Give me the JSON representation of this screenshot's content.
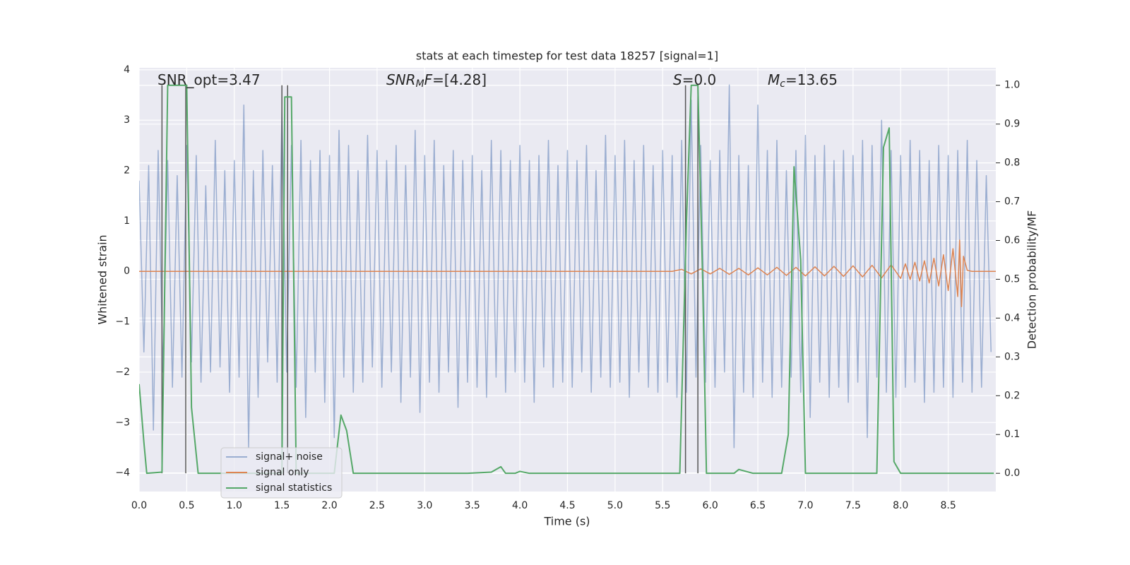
{
  "chart_data": {
    "type": "line",
    "title": "stats at each timestep for test data 18257 [signal=1]",
    "xlabel": "Time (s)",
    "ylabel": "Whitened strain",
    "y2label": "Detection probability/MF",
    "xlim": [
      0,
      9.0
    ],
    "ylim": [
      -4.37,
      4.04
    ],
    "y2lim": [
      -0.047,
      1.045
    ],
    "grid": true,
    "legend": "lower left",
    "xticks": [
      {
        "value": 0,
        "label": "0.0"
      },
      0.5,
      {
        "value": 1,
        "label": "1.0"
      },
      1.5,
      {
        "value": 2,
        "label": "2.0"
      },
      2.5,
      {
        "value": 3,
        "label": "3.0"
      },
      3.5,
      {
        "value": 4,
        "label": "4.0"
      },
      4.5,
      {
        "value": 5,
        "label": "5.0"
      },
      5.5,
      {
        "value": 6,
        "label": "6.0"
      },
      6.5,
      {
        "value": 7,
        "label": "7.0"
      },
      7.5,
      {
        "value": 8,
        "label": "8.0"
      },
      8.5
    ],
    "yticks": [
      {
        "value": -4,
        "label": "−4"
      },
      {
        "value": -3,
        "label": "−3"
      },
      {
        "value": -2,
        "label": "−2"
      },
      {
        "value": -1,
        "label": "−1"
      },
      0,
      1,
      2,
      3,
      4
    ],
    "y2ticks": [
      {
        "value": 0,
        "label": "0.0"
      },
      0.1,
      0.2,
      0.3,
      0.4,
      0.5,
      0.6,
      0.7,
      0.8,
      0.9,
      {
        "value": 1,
        "label": "1.0"
      }
    ],
    "annotations": [
      {
        "segments": [
          {
            "text": "SNR_opt=3.47",
            "style": "normal"
          }
        ]
      },
      {
        "segments": [
          {
            "text": "SNR",
            "style": "italic"
          },
          {
            "text": "M",
            "style": "sub"
          },
          {
            "text": "F",
            "style": "italic"
          },
          {
            "text": "=[4.28]",
            "style": "normal"
          }
        ]
      },
      {
        "segments": [
          {
            "text": "S",
            "style": "italic"
          },
          {
            "text": "=0.0",
            "style": "normal"
          }
        ]
      },
      {
        "segments": [
          {
            "text": "M",
            "style": "italic"
          },
          {
            "text": "c",
            "style": "sub"
          },
          {
            "text": "=13.65",
            "style": "normal"
          }
        ]
      }
    ],
    "vlines": {
      "color": "#555555",
      "x": [
        0.24,
        0.49,
        1.5,
        1.56,
        5.74,
        5.87
      ]
    },
    "series": [
      {
        "name": "signal+ noise",
        "color": "#4c72b0",
        "alpha": 0.5,
        "x": [
          0,
          0.05,
          0.1,
          0.15,
          0.2,
          0.25,
          0.3,
          0.35,
          0.4,
          0.45,
          0.5,
          0.55,
          0.6,
          0.65,
          0.7,
          0.75,
          0.8,
          0.85,
          0.9,
          0.95,
          1,
          1.05,
          1.1,
          1.15,
          1.2,
          1.25,
          1.3,
          1.35,
          1.4,
          1.45,
          1.5,
          1.55,
          1.6,
          1.65,
          1.7,
          1.75,
          1.8,
          1.85,
          1.9,
          1.95,
          2,
          2.05,
          2.1,
          2.15,
          2.2,
          2.25,
          2.3,
          2.35,
          2.4,
          2.45,
          2.5,
          2.55,
          2.6,
          2.65,
          2.7,
          2.75,
          2.8,
          2.85,
          2.9,
          2.95,
          3,
          3.05,
          3.1,
          3.15,
          3.2,
          3.25,
          3.3,
          3.35,
          3.4,
          3.45,
          3.5,
          3.55,
          3.6,
          3.65,
          3.7,
          3.75,
          3.8,
          3.85,
          3.9,
          3.95,
          4,
          4.05,
          4.1,
          4.15,
          4.2,
          4.25,
          4.3,
          4.35,
          4.4,
          4.45,
          4.5,
          4.55,
          4.6,
          4.65,
          4.7,
          4.75,
          4.8,
          4.85,
          4.9,
          4.95,
          5,
          5.05,
          5.1,
          5.15,
          5.2,
          5.25,
          5.3,
          5.35,
          5.4,
          5.45,
          5.5,
          5.55,
          5.6,
          5.65,
          5.7,
          5.75,
          5.8,
          5.85,
          5.9,
          5.95,
          6,
          6.05,
          6.1,
          6.15,
          6.2,
          6.25,
          6.3,
          6.35,
          6.4,
          6.45,
          6.5,
          6.55,
          6.6,
          6.65,
          6.7,
          6.75,
          6.8,
          6.85,
          6.9,
          6.95,
          7,
          7.05,
          7.1,
          7.15,
          7.2,
          7.25,
          7.3,
          7.35,
          7.4,
          7.45,
          7.5,
          7.55,
          7.6,
          7.65,
          7.7,
          7.75,
          7.8,
          7.85,
          7.9,
          7.95,
          8,
          8.05,
          8.1,
          8.15,
          8.2,
          8.25,
          8.3,
          8.35,
          8.4,
          8.45,
          8.5,
          8.55,
          8.6,
          8.65,
          8.7,
          8.75,
          8.8,
          8.85,
          8.9,
          8.95
        ],
        "values": [
          1.8,
          -1.6,
          2.1,
          -3.15,
          2.4,
          -2.0,
          2.2,
          -2.3,
          1.9,
          -2.1,
          2.5,
          -1.8,
          2.3,
          -2.2,
          1.7,
          -2.0,
          2.6,
          -1.9,
          2.0,
          -2.4,
          2.2,
          -2.1,
          3.3,
          -3.5,
          2.0,
          -2.5,
          2.4,
          -1.8,
          2.1,
          -2.2,
          3.2,
          -2.0,
          2.5,
          -2.3,
          2.6,
          -2.9,
          2.2,
          -2.0,
          2.4,
          -2.6,
          2.3,
          -3.3,
          2.8,
          -2.1,
          2.5,
          -2.4,
          2.0,
          -2.2,
          2.7,
          -1.9,
          2.4,
          -2.3,
          2.2,
          -2.0,
          2.5,
          -2.6,
          2.1,
          -2.1,
          2.8,
          -2.8,
          2.3,
          -2.2,
          2.6,
          -2.4,
          2.1,
          -2.0,
          2.4,
          -2.7,
          2.2,
          -2.2,
          2.3,
          -2.3,
          2.0,
          -2.5,
          2.6,
          -2.1,
          2.4,
          -2.4,
          2.2,
          -2.0,
          2.5,
          -2.2,
          2.2,
          -2.6,
          2.3,
          -1.9,
          2.6,
          -2.3,
          2.1,
          -2.2,
          2.4,
          -2.3,
          2.2,
          -2.0,
          2.5,
          -2.4,
          2.0,
          -2.1,
          2.7,
          -2.3,
          2.3,
          -2.2,
          2.6,
          -2.5,
          2.2,
          -2.0,
          2.5,
          -2.3,
          2.1,
          -2.4,
          2.4,
          -2.2,
          2.3,
          -2.5,
          2.6,
          -2.4,
          3.4,
          -2.1,
          2.5,
          -2.2,
          2.2,
          -2.3,
          2.4,
          -2.0,
          3.7,
          -3.5,
          2.3,
          -2.4,
          2.1,
          -2.5,
          3.3,
          -2.2,
          2.4,
          -2.5,
          2.6,
          -2.3,
          2.0,
          -2.1,
          2.4,
          -2.4,
          2.7,
          -2.9,
          2.3,
          -2.2,
          2.5,
          -2.5,
          2.2,
          -2.3,
          2.4,
          -2.6,
          2.3,
          -2.2,
          2.6,
          -3.3,
          2.5,
          -2.1,
          3.0,
          -2.4,
          2.4,
          -2.5,
          2.3,
          -2.3,
          2.6,
          -2.2,
          2.4,
          -2.6,
          2.2,
          -2.4,
          2.5,
          -2.3,
          2.3,
          -2.5,
          2.4,
          -2.2,
          2.6,
          -2.4,
          2.2,
          -2.3,
          1.9,
          -1.6
        ]
      },
      {
        "name": "signal only",
        "color": "#dd8452",
        "alpha": 1,
        "x": [
          0,
          5.6,
          5.7,
          5.8,
          5.9,
          6.0,
          6.1,
          6.2,
          6.3,
          6.4,
          6.5,
          6.6,
          6.7,
          6.8,
          6.9,
          7.0,
          7.1,
          7.2,
          7.3,
          7.4,
          7.5,
          7.6,
          7.7,
          7.8,
          7.9,
          8.0,
          8.05,
          8.1,
          8.15,
          8.2,
          8.25,
          8.3,
          8.35,
          8.4,
          8.45,
          8.5,
          8.55,
          8.6,
          8.62,
          8.64,
          8.66,
          8.7,
          8.75,
          9.0
        ],
        "values": [
          0,
          0,
          0.04,
          -0.05,
          0.05,
          -0.05,
          0.06,
          -0.06,
          0.06,
          -0.07,
          0.07,
          -0.07,
          0.08,
          -0.08,
          0.08,
          -0.09,
          0.09,
          -0.09,
          0.1,
          -0.1,
          0.11,
          -0.11,
          0.12,
          -0.13,
          0.13,
          -0.14,
          0.15,
          -0.16,
          0.18,
          -0.19,
          0.21,
          -0.23,
          0.26,
          -0.29,
          0.33,
          -0.38,
          0.45,
          -0.5,
          0.62,
          -0.7,
          0.3,
          0.02,
          0,
          0
        ]
      },
      {
        "name": "signal statistics",
        "color": "#55a868",
        "alpha": 1,
        "axis": "y2",
        "x": [
          0,
          0.05,
          0.08,
          0.24,
          0.3,
          0.5,
          0.55,
          0.62,
          1.5,
          1.53,
          1.6,
          1.65,
          2.05,
          2.12,
          2.18,
          2.25,
          3.45,
          3.7,
          3.8,
          3.85,
          3.95,
          4.0,
          4.1,
          5.68,
          5.75,
          5.8,
          5.87,
          5.92,
          5.96,
          6.25,
          6.3,
          6.45,
          6.75,
          6.82,
          6.88,
          6.95,
          7.0,
          7.75,
          7.82,
          7.88,
          7.93,
          8.0,
          8.98
        ],
        "values": [
          0.23,
          0.08,
          0.0,
          0.003,
          1.0,
          1.0,
          0.17,
          0.0,
          0.0,
          0.97,
          0.97,
          0.0,
          0.0,
          0.15,
          0.11,
          0.0,
          0.0,
          0.003,
          0.017,
          0.0,
          0.0,
          0.005,
          0.0,
          0.0,
          0.65,
          1.0,
          1.0,
          0.5,
          0.0,
          0.0,
          0.01,
          0.0,
          0.0,
          0.1,
          0.79,
          0.55,
          0.0,
          0.0,
          0.84,
          0.89,
          0.03,
          0.0,
          0.0
        ]
      }
    ]
  }
}
